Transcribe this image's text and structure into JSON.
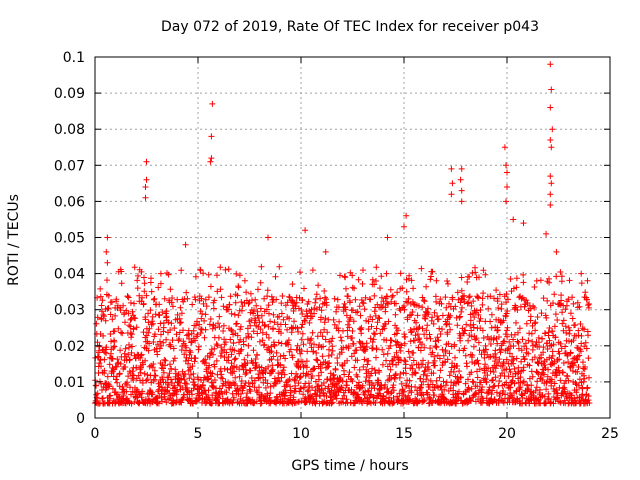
{
  "chart_data": {
    "type": "scatter",
    "title": "Day 072 of 2019, Rate Of TEC Index for receiver p043",
    "xlabel": "GPS time / hours",
    "ylabel": "ROTI / TECUs",
    "xlim": [
      0,
      25
    ],
    "ylim": [
      0,
      0.1
    ],
    "x_ticks": [
      0,
      5,
      10,
      15,
      20,
      25
    ],
    "x_tick_labels": [
      "0",
      "5",
      "10",
      "15",
      "20",
      "25"
    ],
    "y_ticks": [
      0,
      0.01,
      0.02,
      0.03,
      0.04,
      0.05,
      0.06,
      0.07,
      0.08,
      0.09,
      0.1
    ],
    "y_tick_labels": [
      "0",
      "0.01",
      "0.02",
      "0.03",
      "0.04",
      "0.05",
      "0.06",
      "0.07",
      "0.08",
      "0.09",
      "0.1"
    ],
    "grid": true,
    "marker": "+",
    "series_color": "#ff0000",
    "data_extent_hours": [
      0,
      24
    ],
    "dense_band": [
      0.004,
      0.03
    ],
    "outliers": [
      {
        "x": 0.6,
        "y": 0.05
      },
      {
        "x": 0.55,
        "y": 0.046
      },
      {
        "x": 0.6,
        "y": 0.043
      },
      {
        "x": 2.5,
        "y": 0.071
      },
      {
        "x": 2.5,
        "y": 0.066
      },
      {
        "x": 2.45,
        "y": 0.064
      },
      {
        "x": 2.45,
        "y": 0.061
      },
      {
        "x": 3.2,
        "y": 0.04
      },
      {
        "x": 4.4,
        "y": 0.048
      },
      {
        "x": 5.7,
        "y": 0.087
      },
      {
        "x": 5.65,
        "y": 0.078
      },
      {
        "x": 5.65,
        "y": 0.072
      },
      {
        "x": 5.6,
        "y": 0.071
      },
      {
        "x": 8.4,
        "y": 0.05
      },
      {
        "x": 10.2,
        "y": 0.052
      },
      {
        "x": 11.2,
        "y": 0.046
      },
      {
        "x": 14.2,
        "y": 0.05
      },
      {
        "x": 15.1,
        "y": 0.056
      },
      {
        "x": 15.0,
        "y": 0.053
      },
      {
        "x": 17.3,
        "y": 0.069
      },
      {
        "x": 17.35,
        "y": 0.065
      },
      {
        "x": 17.3,
        "y": 0.062
      },
      {
        "x": 17.8,
        "y": 0.069
      },
      {
        "x": 17.75,
        "y": 0.066
      },
      {
        "x": 17.8,
        "y": 0.063
      },
      {
        "x": 17.8,
        "y": 0.06
      },
      {
        "x": 19.9,
        "y": 0.075
      },
      {
        "x": 19.95,
        "y": 0.07
      },
      {
        "x": 20.0,
        "y": 0.068
      },
      {
        "x": 20.0,
        "y": 0.064
      },
      {
        "x": 19.95,
        "y": 0.06
      },
      {
        "x": 20.3,
        "y": 0.055
      },
      {
        "x": 20.8,
        "y": 0.054
      },
      {
        "x": 22.1,
        "y": 0.098
      },
      {
        "x": 22.15,
        "y": 0.091
      },
      {
        "x": 22.1,
        "y": 0.086
      },
      {
        "x": 22.2,
        "y": 0.08
      },
      {
        "x": 22.1,
        "y": 0.077
      },
      {
        "x": 22.15,
        "y": 0.075
      },
      {
        "x": 22.1,
        "y": 0.067
      },
      {
        "x": 22.15,
        "y": 0.065
      },
      {
        "x": 22.1,
        "y": 0.062
      },
      {
        "x": 22.1,
        "y": 0.059
      },
      {
        "x": 21.9,
        "y": 0.051
      },
      {
        "x": 22.4,
        "y": 0.046
      },
      {
        "x": 23.6,
        "y": 0.04
      }
    ]
  }
}
